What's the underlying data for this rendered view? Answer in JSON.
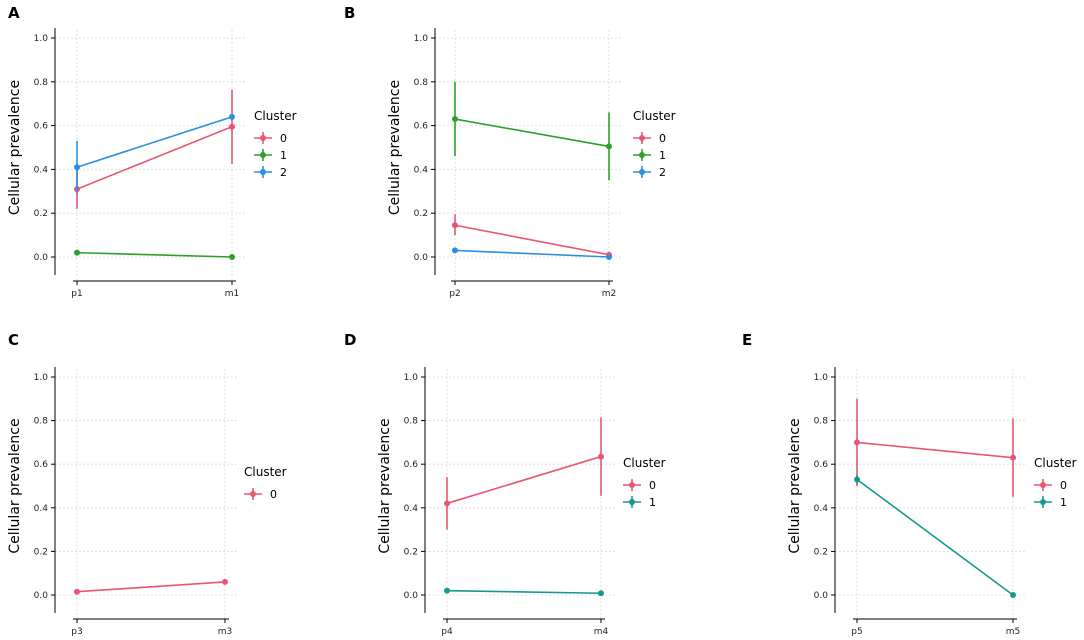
{
  "colors": {
    "cluster0": "#e8566f",
    "cluster1_green": "#2ca02c",
    "cluster1_teal": "#17998f",
    "cluster2": "#2b8fe0"
  },
  "chart_data": [
    {
      "panel": "A",
      "type": "line",
      "categories": [
        "p1",
        "m1"
      ],
      "ylabel": "Cellular prevalence",
      "ylim": [
        0,
        1
      ],
      "yticks": [
        "0.0",
        "0.2",
        "0.4",
        "0.6",
        "0.8",
        "1.0"
      ],
      "grid": true,
      "legend_title": "Cluster",
      "series": [
        {
          "name": "0",
          "color": "#e8566f",
          "values": [
            0.31,
            0.595
          ],
          "err_low": [
            0.22,
            0.425
          ],
          "err_high": [
            0.4,
            0.765
          ]
        },
        {
          "name": "1",
          "color": "#2ca02c",
          "values": [
            0.02,
            0.0
          ],
          "err_low": [
            0.02,
            0.0
          ],
          "err_high": [
            0.02,
            0.0
          ]
        },
        {
          "name": "2",
          "color": "#2b8fe0",
          "values": [
            0.41,
            0.64
          ],
          "err_low": [
            0.29,
            0.64
          ],
          "err_high": [
            0.53,
            0.64
          ]
        }
      ]
    },
    {
      "panel": "B",
      "type": "line",
      "categories": [
        "p2",
        "m2"
      ],
      "ylabel": "Cellular prevalence",
      "ylim": [
        0,
        1
      ],
      "yticks": [
        "0.0",
        "0.2",
        "0.4",
        "0.6",
        "0.8",
        "1.0"
      ],
      "grid": true,
      "legend_title": "Cluster",
      "series": [
        {
          "name": "0",
          "color": "#e8566f",
          "values": [
            0.145,
            0.01
          ],
          "err_low": [
            0.1,
            0.01
          ],
          "err_high": [
            0.195,
            0.01
          ]
        },
        {
          "name": "1",
          "color": "#2ca02c",
          "values": [
            0.63,
            0.505
          ],
          "err_low": [
            0.46,
            0.35
          ],
          "err_high": [
            0.8,
            0.66
          ]
        },
        {
          "name": "2",
          "color": "#2b8fe0",
          "values": [
            0.03,
            0.0
          ],
          "err_low": [
            0.03,
            0.0
          ],
          "err_high": [
            0.03,
            0.0
          ]
        }
      ]
    },
    {
      "panel": "C",
      "type": "line",
      "categories": [
        "p3",
        "m3"
      ],
      "ylabel": "Cellular prevalence",
      "ylim": [
        0,
        1
      ],
      "yticks": [
        "0.0",
        "0.2",
        "0.4",
        "0.6",
        "0.8",
        "1.0"
      ],
      "grid": true,
      "legend_title": "Cluster",
      "series": [
        {
          "name": "0",
          "color": "#e8566f",
          "values": [
            0.015,
            0.06
          ],
          "err_low": [
            0.015,
            0.06
          ],
          "err_high": [
            0.015,
            0.06
          ]
        }
      ]
    },
    {
      "panel": "D",
      "type": "line",
      "categories": [
        "p4",
        "m4"
      ],
      "ylabel": "Cellular prevalence",
      "ylim": [
        0,
        1
      ],
      "yticks": [
        "0.0",
        "0.2",
        "0.4",
        "0.6",
        "0.8",
        "1.0"
      ],
      "grid": true,
      "legend_title": "Cluster",
      "series": [
        {
          "name": "0",
          "color": "#e8566f",
          "values": [
            0.42,
            0.635
          ],
          "err_low": [
            0.3,
            0.455
          ],
          "err_high": [
            0.54,
            0.815
          ]
        },
        {
          "name": "1",
          "color": "#17998f",
          "values": [
            0.02,
            0.008
          ],
          "err_low": [
            0.02,
            0.008
          ],
          "err_high": [
            0.02,
            0.008
          ]
        }
      ]
    },
    {
      "panel": "E",
      "type": "line",
      "categories": [
        "p5",
        "m5"
      ],
      "ylabel": "Cellular prevalence",
      "ylim": [
        0,
        1
      ],
      "yticks": [
        "0.0",
        "0.2",
        "0.4",
        "0.6",
        "0.8",
        "1.0"
      ],
      "grid": true,
      "legend_title": "Cluster",
      "series": [
        {
          "name": "0",
          "color": "#e8566f",
          "values": [
            0.7,
            0.63
          ],
          "err_low": [
            0.5,
            0.45
          ],
          "err_high": [
            0.9,
            0.81
          ]
        },
        {
          "name": "1",
          "color": "#17998f",
          "values": [
            0.53,
            0.0
          ],
          "err_low": [
            0.51,
            0.0
          ],
          "err_high": [
            0.55,
            0.0
          ]
        }
      ]
    }
  ]
}
